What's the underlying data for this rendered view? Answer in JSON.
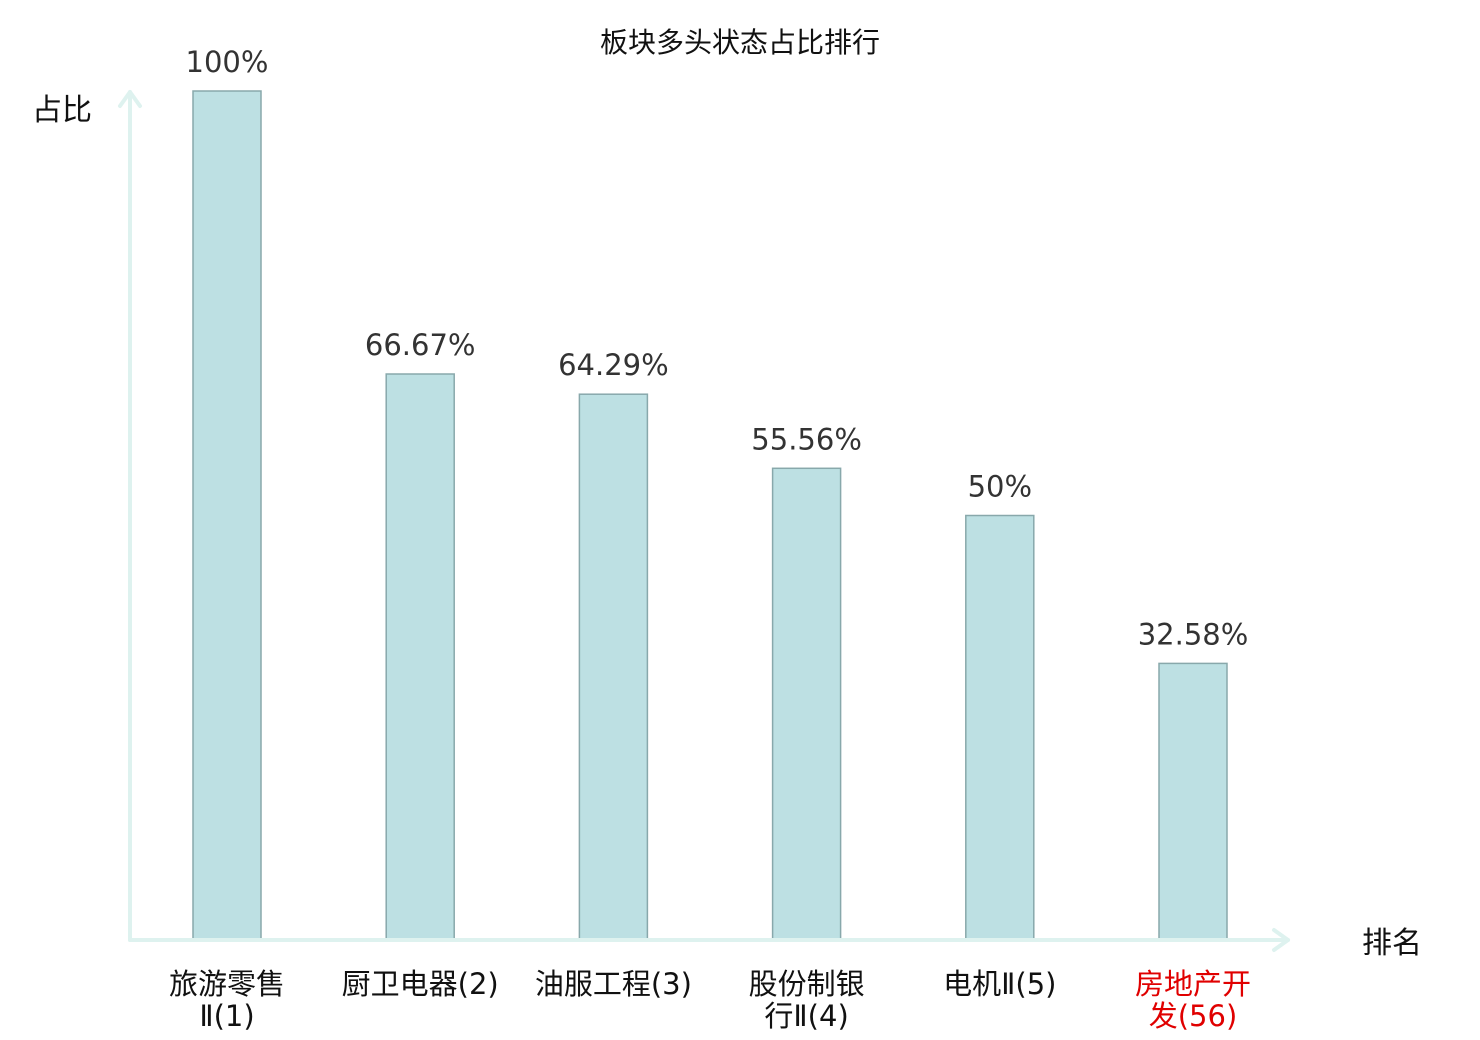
{
  "chart_data": {
    "type": "bar",
    "title": "板块多头状态占比排行",
    "xlabel": "排名",
    "ylabel": "占比",
    "ylim": [
      0,
      100
    ],
    "grid": false,
    "legend": "none",
    "categories": [
      {
        "line1": "旅游零售",
        "line2": "Ⅱ(1)",
        "color": "#111111"
      },
      {
        "line1": "厨卫电器(2)",
        "line2": "",
        "color": "#111111"
      },
      {
        "line1": "油服工程(3)",
        "line2": "",
        "color": "#111111"
      },
      {
        "line1": "股份制银",
        "line2": "行Ⅱ(4)",
        "color": "#111111"
      },
      {
        "line1": "电机Ⅱ(5)",
        "line2": "",
        "color": "#111111"
      },
      {
        "line1": "房地产开",
        "line2": "发(56)",
        "color": "#e00000"
      }
    ],
    "values": [
      100,
      66.67,
      64.29,
      55.56,
      50,
      32.58
    ],
    "value_labels": [
      "100%",
      "66.67%",
      "64.29%",
      "55.56%",
      "50%",
      "32.58%"
    ],
    "colors": {
      "bar_fill": "#bde0e3",
      "bar_stroke": "#88a8ab",
      "axis": "#def2ef",
      "highlight": "#e00000"
    }
  }
}
